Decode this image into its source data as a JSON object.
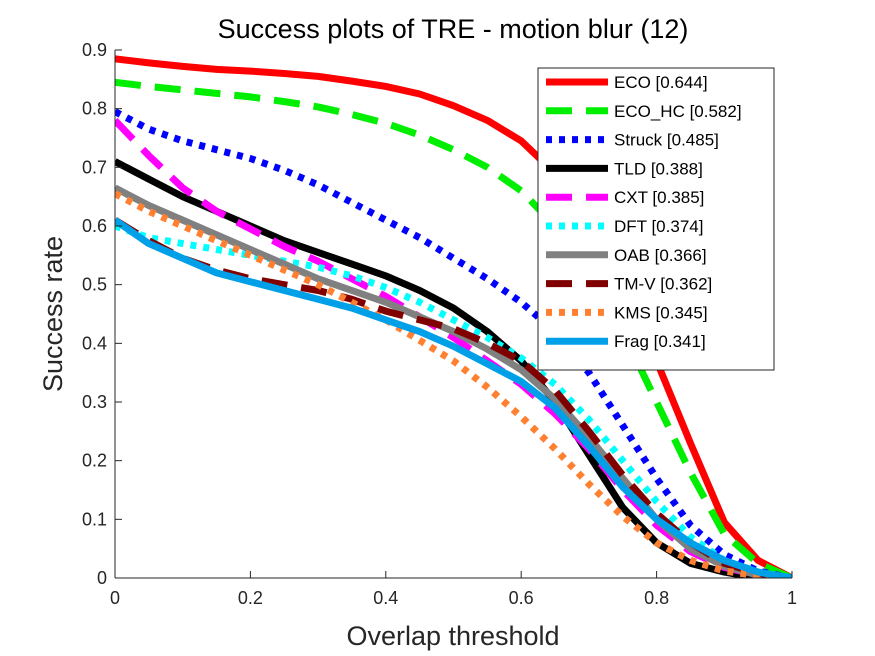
{
  "chart_data": {
    "type": "line",
    "title": "Success plots of TRE - motion blur (12)",
    "xlabel": "Overlap threshold",
    "ylabel": "Success rate",
    "xlim": [
      0,
      1
    ],
    "ylim": [
      0,
      0.9
    ],
    "xticks": [
      0,
      0.2,
      0.4,
      0.6,
      0.8,
      1
    ],
    "xtick_labels": [
      "0",
      "0.2",
      "0.4",
      "0.6",
      "0.8",
      "1"
    ],
    "yticks": [
      0,
      0.1,
      0.2,
      0.3,
      0.4,
      0.5,
      0.6,
      0.7,
      0.8,
      0.9
    ],
    "ytick_labels": [
      "0",
      "0.1",
      "0.2",
      "0.3",
      "0.4",
      "0.5",
      "0.6",
      "0.7",
      "0.8",
      "0.9"
    ],
    "grid": false,
    "legend_position": "top-right",
    "x": [
      0,
      0.05,
      0.1,
      0.15,
      0.2,
      0.25,
      0.3,
      0.35,
      0.4,
      0.45,
      0.5,
      0.55,
      0.6,
      0.65,
      0.7,
      0.75,
      0.8,
      0.85,
      0.9,
      0.95,
      1
    ],
    "series": [
      {
        "name": "ECO",
        "legend_label": "ECO [0.644]",
        "color": "#ff0000",
        "style": "solid",
        "values": [
          0.885,
          0.878,
          0.872,
          0.867,
          0.864,
          0.86,
          0.855,
          0.847,
          0.838,
          0.825,
          0.805,
          0.78,
          0.745,
          0.69,
          0.61,
          0.5,
          0.37,
          0.23,
          0.095,
          0.03,
          0.0
        ]
      },
      {
        "name": "ECO_HC",
        "legend_label": "ECO_HC [0.582]",
        "color": "#00ee00",
        "style": "dashed",
        "values": [
          0.845,
          0.838,
          0.832,
          0.826,
          0.82,
          0.812,
          0.803,
          0.79,
          0.775,
          0.755,
          0.73,
          0.7,
          0.66,
          0.6,
          0.52,
          0.42,
          0.3,
          0.18,
          0.075,
          0.025,
          0.0
        ]
      },
      {
        "name": "Struck",
        "legend_label": "Struck [0.485]",
        "color": "#0000ff",
        "style": "dotted",
        "values": [
          0.795,
          0.765,
          0.745,
          0.73,
          0.715,
          0.695,
          0.67,
          0.64,
          0.61,
          0.58,
          0.545,
          0.51,
          0.47,
          0.42,
          0.35,
          0.26,
          0.17,
          0.09,
          0.04,
          0.012,
          0.0
        ]
      },
      {
        "name": "TLD",
        "legend_label": "TLD [0.388]",
        "color": "#000000",
        "style": "solid",
        "values": [
          0.71,
          0.68,
          0.65,
          0.625,
          0.6,
          0.575,
          0.555,
          0.535,
          0.515,
          0.49,
          0.46,
          0.42,
          0.37,
          0.3,
          0.21,
          0.12,
          0.06,
          0.025,
          0.01,
          0.0,
          0.0
        ]
      },
      {
        "name": "CXT",
        "legend_label": "CXT [0.385]",
        "color": "#ff00ff",
        "style": "dashed",
        "values": [
          0.78,
          0.72,
          0.665,
          0.625,
          0.595,
          0.565,
          0.54,
          0.51,
          0.48,
          0.445,
          0.41,
          0.37,
          0.33,
          0.28,
          0.22,
          0.15,
          0.09,
          0.045,
          0.018,
          0.005,
          0.0
        ]
      },
      {
        "name": "DFT",
        "legend_label": "DFT [0.374]",
        "color": "#00ffff",
        "style": "dotted",
        "values": [
          0.6,
          0.58,
          0.57,
          0.56,
          0.55,
          0.54,
          0.53,
          0.515,
          0.495,
          0.47,
          0.44,
          0.41,
          0.375,
          0.33,
          0.27,
          0.2,
          0.13,
          0.07,
          0.03,
          0.01,
          0.0
        ]
      },
      {
        "name": "OAB",
        "legend_label": "OAB [0.366]",
        "color": "#808080",
        "style": "solid",
        "values": [
          0.665,
          0.635,
          0.61,
          0.585,
          0.56,
          0.535,
          0.51,
          0.49,
          0.47,
          0.445,
          0.42,
          0.39,
          0.355,
          0.305,
          0.24,
          0.17,
          0.1,
          0.05,
          0.02,
          0.005,
          0.0
        ]
      },
      {
        "name": "TM-V",
        "legend_label": "TM-V [0.362]",
        "color": "#800000",
        "style": "dashed",
        "values": [
          0.61,
          0.575,
          0.545,
          0.525,
          0.51,
          0.5,
          0.49,
          0.475,
          0.455,
          0.44,
          0.425,
          0.4,
          0.37,
          0.32,
          0.25,
          0.175,
          0.11,
          0.06,
          0.025,
          0.008,
          0.0
        ]
      },
      {
        "name": "KMS",
        "legend_label": "KMS [0.345]",
        "color": "#ff8030",
        "style": "dotted",
        "values": [
          0.655,
          0.625,
          0.6,
          0.575,
          0.55,
          0.525,
          0.5,
          0.47,
          0.44,
          0.405,
          0.37,
          0.325,
          0.275,
          0.22,
          0.16,
          0.105,
          0.06,
          0.03,
          0.012,
          0.004,
          0.0
        ]
      },
      {
        "name": "Frag",
        "legend_label": "Frag [0.341]",
        "color": "#00a0e8",
        "style": "solid",
        "values": [
          0.61,
          0.57,
          0.545,
          0.52,
          0.505,
          0.49,
          0.475,
          0.46,
          0.44,
          0.42,
          0.395,
          0.365,
          0.335,
          0.29,
          0.225,
          0.155,
          0.1,
          0.06,
          0.03,
          0.01,
          0.0
        ]
      }
    ]
  }
}
